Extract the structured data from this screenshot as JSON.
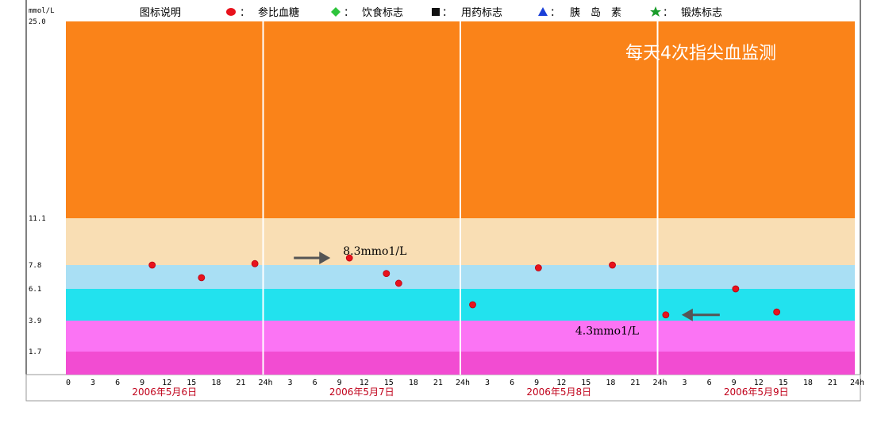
{
  "chart_data": {
    "type": "scatter",
    "unit_label": "mmol/L",
    "legend_title": "图标说明",
    "legend": [
      {
        "name": "参比血糖",
        "marker": "circle",
        "color": "#e8121c"
      },
      {
        "name": "饮食标志",
        "marker": "diamond",
        "color": "#2ec43c"
      },
      {
        "name": "用药标志",
        "marker": "square",
        "color": "#111111"
      },
      {
        "name": "胰　岛　素",
        "marker": "triangle",
        "color": "#1a3fd8"
      },
      {
        "name": "锻炼标志",
        "marker": "star",
        "color": "#1a9c2a"
      }
    ],
    "overlay_title": "每天4次指尖血监测",
    "y_ticks": [
      "25.0",
      "11.1",
      "7.8",
      "6.1",
      "3.9",
      "1.7"
    ],
    "bands": [
      {
        "from": 11.1,
        "to": 25.0,
        "color": "#fa8319"
      },
      {
        "from": 7.8,
        "to": 11.1,
        "color": "#f9deb4"
      },
      {
        "from": 6.1,
        "to": 7.8,
        "color": "#a9dff4"
      },
      {
        "from": 3.9,
        "to": 6.1,
        "color": "#22e2ee"
      },
      {
        "from": 1.7,
        "to": 3.9,
        "color": "#fb74f4"
      },
      {
        "from": 0,
        "to": 1.7,
        "color": "#f24cd2"
      }
    ],
    "days": [
      {
        "label": "2006年5月6日"
      },
      {
        "label": "2006年5月7日"
      },
      {
        "label": "2006年5月8日"
      },
      {
        "label": "2006年5月9日"
      }
    ],
    "hour_ticks": [
      "0",
      "3",
      "6",
      "9",
      "12",
      "15",
      "18",
      "21",
      "24h"
    ],
    "series": [
      {
        "name": "参比血糖",
        "color": "#e8121c",
        "points": [
          {
            "day": 0,
            "hour": 10.5,
            "value": 7.8
          },
          {
            "day": 0,
            "hour": 16.5,
            "value": 6.9
          },
          {
            "day": 0,
            "hour": 23.0,
            "value": 7.9
          },
          {
            "day": 1,
            "hour": 10.5,
            "value": 8.3
          },
          {
            "day": 1,
            "hour": 15.0,
            "value": 7.2
          },
          {
            "day": 1,
            "hour": 16.5,
            "value": 6.5
          },
          {
            "day": 1,
            "hour": 25.5,
            "value": 5.0
          },
          {
            "day": 2,
            "hour": 9.5,
            "value": 7.6
          },
          {
            "day": 2,
            "hour": 18.5,
            "value": 7.8
          },
          {
            "day": 2,
            "hour": 25.0,
            "value": 4.3
          },
          {
            "day": 3,
            "hour": 9.5,
            "value": 6.1
          },
          {
            "day": 3,
            "hour": 14.5,
            "value": 4.5
          }
        ]
      }
    ],
    "annotations": [
      {
        "text": "8.3mmo1/L",
        "day": 1,
        "hour": 10.5,
        "value": 8.3,
        "arrow": "right"
      },
      {
        "text": "4.3mmo1/L",
        "day": 2,
        "hour": 25.0,
        "value": 4.3,
        "arrow": "left"
      }
    ]
  }
}
